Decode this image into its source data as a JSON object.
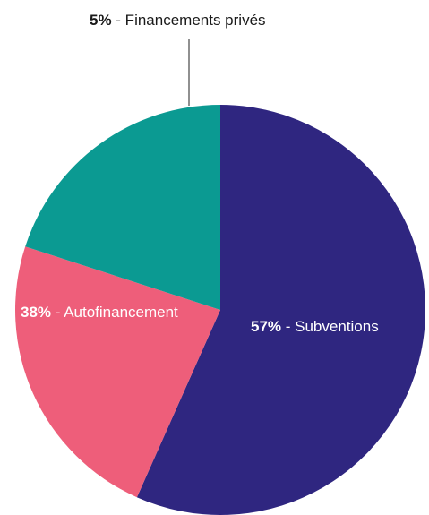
{
  "chart_data": {
    "type": "pie",
    "slices": [
      {
        "value": 57,
        "pct_label": "57%",
        "name_label": " - Subventions",
        "color": "#2f2680"
      },
      {
        "value": 38,
        "pct_label": "38%",
        "name_label": " - Autofinancement",
        "color": "#ee5e7a"
      },
      {
        "value": 5,
        "pct_label": "5%",
        "name_label": " - Financements privés",
        "color": "#0b9a92"
      }
    ]
  }
}
